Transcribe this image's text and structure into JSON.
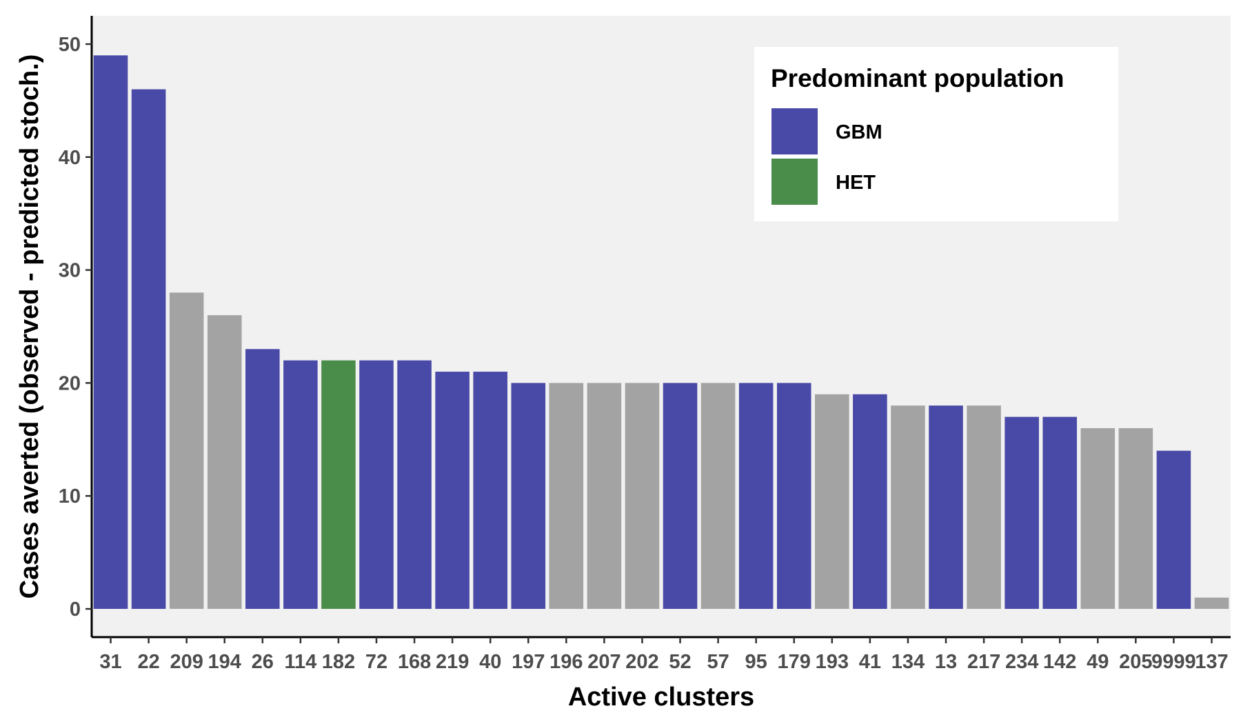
{
  "chart_data": {
    "type": "bar",
    "xlabel": "Active clusters",
    "ylabel": "Cases averted (observed - predicted stoch.)",
    "ylim": [
      -2.5,
      52.5
    ],
    "yticks": [
      0,
      10,
      20,
      30,
      40,
      50
    ],
    "grid": false,
    "legend_position": "top-right",
    "legend": {
      "title": "Predominant population",
      "entries": [
        {
          "name": "GBM",
          "color": "#4949a8"
        },
        {
          "name": "HET",
          "color": "#4a8c4a"
        }
      ]
    },
    "colors": {
      "GBM": "#4949a8",
      "HET": "#4a8c4a",
      "other": "#a3a3a3",
      "panel": "#f1f1f1"
    },
    "categories": [
      "31",
      "22",
      "209",
      "194",
      "26",
      "114",
      "182",
      "72",
      "168",
      "219",
      "40",
      "197",
      "196",
      "207",
      "202",
      "52",
      "57",
      "95",
      "179",
      "193",
      "41",
      "134",
      "13",
      "217",
      "234",
      "142",
      "49",
      "205",
      "9999",
      "137"
    ],
    "values": [
      49,
      46,
      28,
      26,
      23,
      22,
      22,
      22,
      22,
      21,
      21,
      20,
      20,
      20,
      20,
      20,
      20,
      20,
      20,
      19,
      19,
      18,
      18,
      18,
      17,
      17,
      16,
      16,
      14,
      1
    ],
    "groups": [
      "GBM",
      "GBM",
      "other",
      "other",
      "GBM",
      "GBM",
      "HET",
      "GBM",
      "GBM",
      "GBM",
      "GBM",
      "GBM",
      "other",
      "other",
      "other",
      "GBM",
      "other",
      "GBM",
      "GBM",
      "other",
      "GBM",
      "other",
      "GBM",
      "other",
      "GBM",
      "GBM",
      "other",
      "other",
      "GBM",
      "other"
    ]
  }
}
